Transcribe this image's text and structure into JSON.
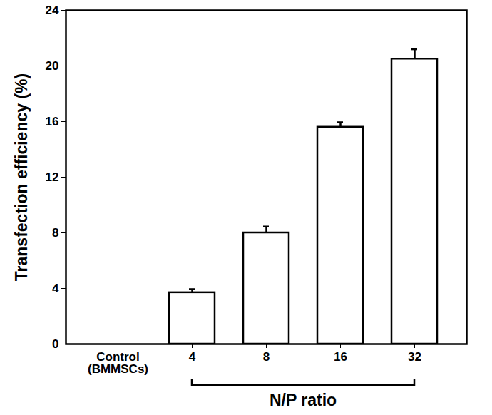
{
  "chart_data": {
    "type": "bar",
    "categories": [
      "Control (BMMSCs)",
      "4",
      "8",
      "16",
      "32"
    ],
    "values": [
      0,
      3.7,
      8.0,
      15.6,
      20.5
    ],
    "errors": [
      null,
      0.25,
      0.45,
      0.35,
      0.7
    ],
    "color": "#ffffff",
    "y_label": "Transfection efficiency (%)",
    "x_label": "N/P ratio",
    "ylim": [
      0,
      24
    ],
    "yticks": [
      0,
      4,
      8,
      12,
      16,
      20,
      24
    ],
    "grid": false
  }
}
